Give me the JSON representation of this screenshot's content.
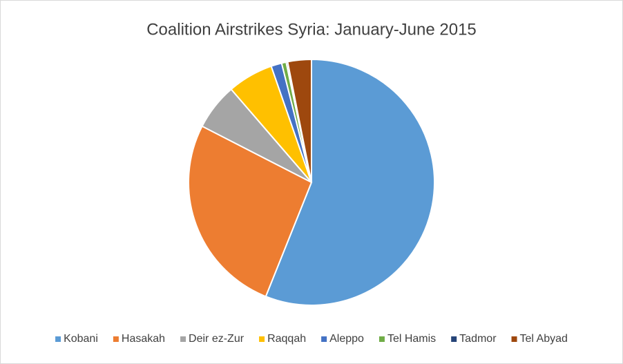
{
  "chart_data": {
    "type": "pie",
    "title": "Coalition Airstrikes Syria: January-June 2015",
    "categories": [
      "Kobani",
      "Hasakah",
      "Deir ez-Zur",
      "Raqqah",
      "Aleppo",
      "Tel Hamis",
      "Tadmor",
      "Tel Abyad"
    ],
    "values": [
      55.9,
      26.4,
      6.1,
      6.0,
      1.4,
      0.6,
      0.2,
      3.1
    ],
    "colors": [
      "#5b9bd5",
      "#ed7d31",
      "#a5a5a5",
      "#ffc000",
      "#4472c4",
      "#70ad47",
      "#264478",
      "#9e480e"
    ],
    "legend": "bottom"
  }
}
